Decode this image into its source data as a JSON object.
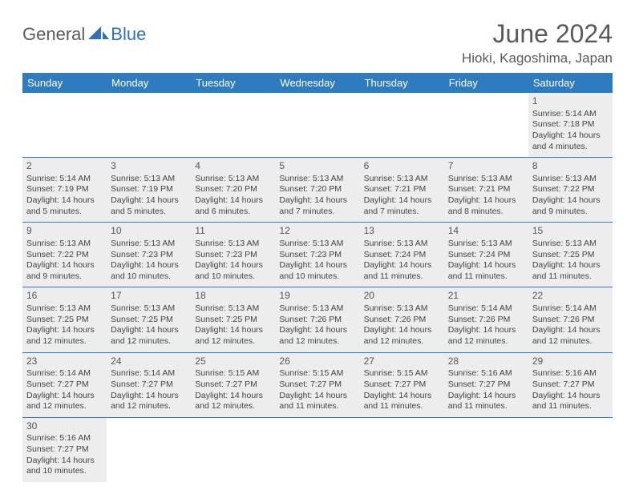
{
  "logo": {
    "text1": "General",
    "text2": "Blue"
  },
  "title": "June 2024",
  "location": "Hioki, Kagoshima, Japan",
  "colors": {
    "header_bg": "#2f7bbf",
    "header_text": "#ffffff",
    "cell_filled_bg": "#ededed",
    "cell_border": "#2f7bbf",
    "title_color": "#5a5a5a"
  },
  "weekdays": [
    "Sunday",
    "Monday",
    "Tuesday",
    "Wednesday",
    "Thursday",
    "Friday",
    "Saturday"
  ],
  "weeks": [
    [
      null,
      null,
      null,
      null,
      null,
      null,
      {
        "n": "1",
        "sr": "Sunrise: 5:14 AM",
        "ss": "Sunset: 7:18 PM",
        "dl": "Daylight: 14 hours and 4 minutes."
      }
    ],
    [
      {
        "n": "2",
        "sr": "Sunrise: 5:14 AM",
        "ss": "Sunset: 7:19 PM",
        "dl": "Daylight: 14 hours and 5 minutes."
      },
      {
        "n": "3",
        "sr": "Sunrise: 5:13 AM",
        "ss": "Sunset: 7:19 PM",
        "dl": "Daylight: 14 hours and 5 minutes."
      },
      {
        "n": "4",
        "sr": "Sunrise: 5:13 AM",
        "ss": "Sunset: 7:20 PM",
        "dl": "Daylight: 14 hours and 6 minutes."
      },
      {
        "n": "5",
        "sr": "Sunrise: 5:13 AM",
        "ss": "Sunset: 7:20 PM",
        "dl": "Daylight: 14 hours and 7 minutes."
      },
      {
        "n": "6",
        "sr": "Sunrise: 5:13 AM",
        "ss": "Sunset: 7:21 PM",
        "dl": "Daylight: 14 hours and 7 minutes."
      },
      {
        "n": "7",
        "sr": "Sunrise: 5:13 AM",
        "ss": "Sunset: 7:21 PM",
        "dl": "Daylight: 14 hours and 8 minutes."
      },
      {
        "n": "8",
        "sr": "Sunrise: 5:13 AM",
        "ss": "Sunset: 7:22 PM",
        "dl": "Daylight: 14 hours and 9 minutes."
      }
    ],
    [
      {
        "n": "9",
        "sr": "Sunrise: 5:13 AM",
        "ss": "Sunset: 7:22 PM",
        "dl": "Daylight: 14 hours and 9 minutes."
      },
      {
        "n": "10",
        "sr": "Sunrise: 5:13 AM",
        "ss": "Sunset: 7:23 PM",
        "dl": "Daylight: 14 hours and 10 minutes."
      },
      {
        "n": "11",
        "sr": "Sunrise: 5:13 AM",
        "ss": "Sunset: 7:23 PM",
        "dl": "Daylight: 14 hours and 10 minutes."
      },
      {
        "n": "12",
        "sr": "Sunrise: 5:13 AM",
        "ss": "Sunset: 7:23 PM",
        "dl": "Daylight: 14 hours and 10 minutes."
      },
      {
        "n": "13",
        "sr": "Sunrise: 5:13 AM",
        "ss": "Sunset: 7:24 PM",
        "dl": "Daylight: 14 hours and 11 minutes."
      },
      {
        "n": "14",
        "sr": "Sunrise: 5:13 AM",
        "ss": "Sunset: 7:24 PM",
        "dl": "Daylight: 14 hours and 11 minutes."
      },
      {
        "n": "15",
        "sr": "Sunrise: 5:13 AM",
        "ss": "Sunset: 7:25 PM",
        "dl": "Daylight: 14 hours and 11 minutes."
      }
    ],
    [
      {
        "n": "16",
        "sr": "Sunrise: 5:13 AM",
        "ss": "Sunset: 7:25 PM",
        "dl": "Daylight: 14 hours and 12 minutes."
      },
      {
        "n": "17",
        "sr": "Sunrise: 5:13 AM",
        "ss": "Sunset: 7:25 PM",
        "dl": "Daylight: 14 hours and 12 minutes."
      },
      {
        "n": "18",
        "sr": "Sunrise: 5:13 AM",
        "ss": "Sunset: 7:25 PM",
        "dl": "Daylight: 14 hours and 12 minutes."
      },
      {
        "n": "19",
        "sr": "Sunrise: 5:13 AM",
        "ss": "Sunset: 7:26 PM",
        "dl": "Daylight: 14 hours and 12 minutes."
      },
      {
        "n": "20",
        "sr": "Sunrise: 5:13 AM",
        "ss": "Sunset: 7:26 PM",
        "dl": "Daylight: 14 hours and 12 minutes."
      },
      {
        "n": "21",
        "sr": "Sunrise: 5:14 AM",
        "ss": "Sunset: 7:26 PM",
        "dl": "Daylight: 14 hours and 12 minutes."
      },
      {
        "n": "22",
        "sr": "Sunrise: 5:14 AM",
        "ss": "Sunset: 7:26 PM",
        "dl": "Daylight: 14 hours and 12 minutes."
      }
    ],
    [
      {
        "n": "23",
        "sr": "Sunrise: 5:14 AM",
        "ss": "Sunset: 7:27 PM",
        "dl": "Daylight: 14 hours and 12 minutes."
      },
      {
        "n": "24",
        "sr": "Sunrise: 5:14 AM",
        "ss": "Sunset: 7:27 PM",
        "dl": "Daylight: 14 hours and 12 minutes."
      },
      {
        "n": "25",
        "sr": "Sunrise: 5:15 AM",
        "ss": "Sunset: 7:27 PM",
        "dl": "Daylight: 14 hours and 12 minutes."
      },
      {
        "n": "26",
        "sr": "Sunrise: 5:15 AM",
        "ss": "Sunset: 7:27 PM",
        "dl": "Daylight: 14 hours and 11 minutes."
      },
      {
        "n": "27",
        "sr": "Sunrise: 5:15 AM",
        "ss": "Sunset: 7:27 PM",
        "dl": "Daylight: 14 hours and 11 minutes."
      },
      {
        "n": "28",
        "sr": "Sunrise: 5:16 AM",
        "ss": "Sunset: 7:27 PM",
        "dl": "Daylight: 14 hours and 11 minutes."
      },
      {
        "n": "29",
        "sr": "Sunrise: 5:16 AM",
        "ss": "Sunset: 7:27 PM",
        "dl": "Daylight: 14 hours and 11 minutes."
      }
    ],
    [
      {
        "n": "30",
        "sr": "Sunrise: 5:16 AM",
        "ss": "Sunset: 7:27 PM",
        "dl": "Daylight: 14 hours and 10 minutes."
      },
      null,
      null,
      null,
      null,
      null,
      null
    ]
  ]
}
